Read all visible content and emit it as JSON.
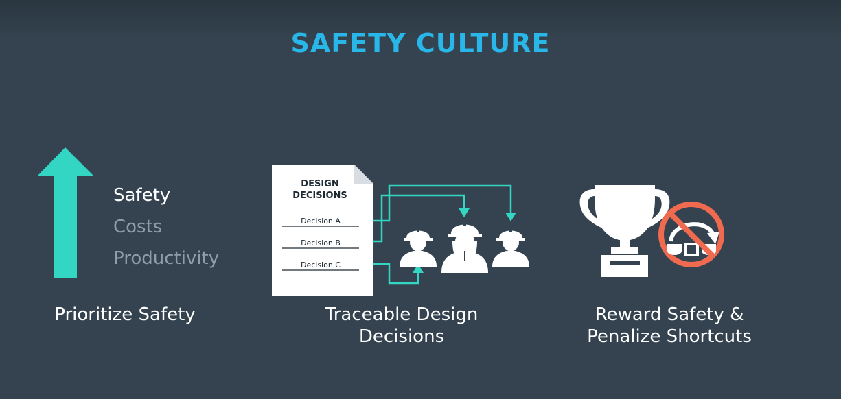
{
  "title": "SAFETY CULTURE",
  "colors": {
    "background": "#34434f",
    "title": "#29b6e8",
    "accent": "#33d6c3",
    "no_symbol": "#f06a4f",
    "muted": "#8e9da8",
    "white": "#ffffff"
  },
  "priorities": [
    {
      "label": "Safety",
      "emphasis": "primary"
    },
    {
      "label": "Costs",
      "emphasis": "secondary"
    },
    {
      "label": "Productivity",
      "emphasis": "secondary"
    }
  ],
  "document": {
    "heading_line1": "DESIGN",
    "heading_line2": "DECISIONS",
    "items": [
      "Decision A",
      "Decision B",
      "Decision C"
    ]
  },
  "captions": {
    "prioritize": "Prioritize Safety",
    "traceable_line1": "Traceable Design",
    "traceable_line2": "Decisions",
    "reward_line1": "Reward Safety &",
    "reward_line2": "Penalize Shortcuts"
  },
  "icons": {
    "up_arrow": "arrow-up-icon",
    "document": "document-icon",
    "workers": "hard-hat-worker-icon",
    "trophy": "trophy-icon",
    "no_shortcut": "no-shortcut-icon"
  }
}
